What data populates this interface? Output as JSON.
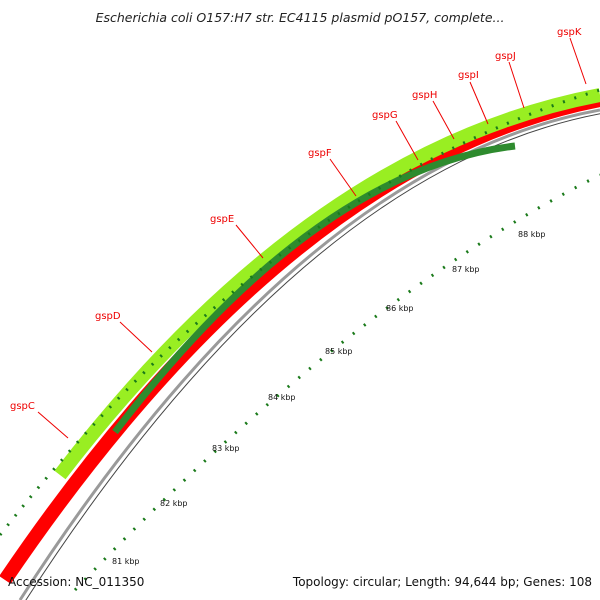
{
  "header": {
    "title": "Escherichia coli O157:H7 str. EC4115 plasmid pO157, complete..."
  },
  "footer": {
    "accession": "Accession: NC_011350",
    "summary": "Topology: circular; Length: 94,644 bp; Genes: 108"
  },
  "colors": {
    "label": "#ee0000",
    "cds": "#ff0000",
    "outer_band": "#99ee22",
    "inner_band": "#2e8b2e",
    "backbone": "#8a8a8a",
    "tick": "#1a7a1a"
  },
  "genes": [
    {
      "name": "gspC"
    },
    {
      "name": "gspD"
    },
    {
      "name": "gspE"
    },
    {
      "name": "gspF"
    },
    {
      "name": "gspG"
    },
    {
      "name": "gspH"
    },
    {
      "name": "gspI"
    },
    {
      "name": "gspJ"
    },
    {
      "name": "gspK"
    }
  ],
  "kbp_ticks": [
    "81 kbp",
    "82 kbp",
    "83 kbp",
    "84 kbp",
    "85 kbp",
    "86 kbp",
    "87 kbp",
    "88 kbp"
  ]
}
